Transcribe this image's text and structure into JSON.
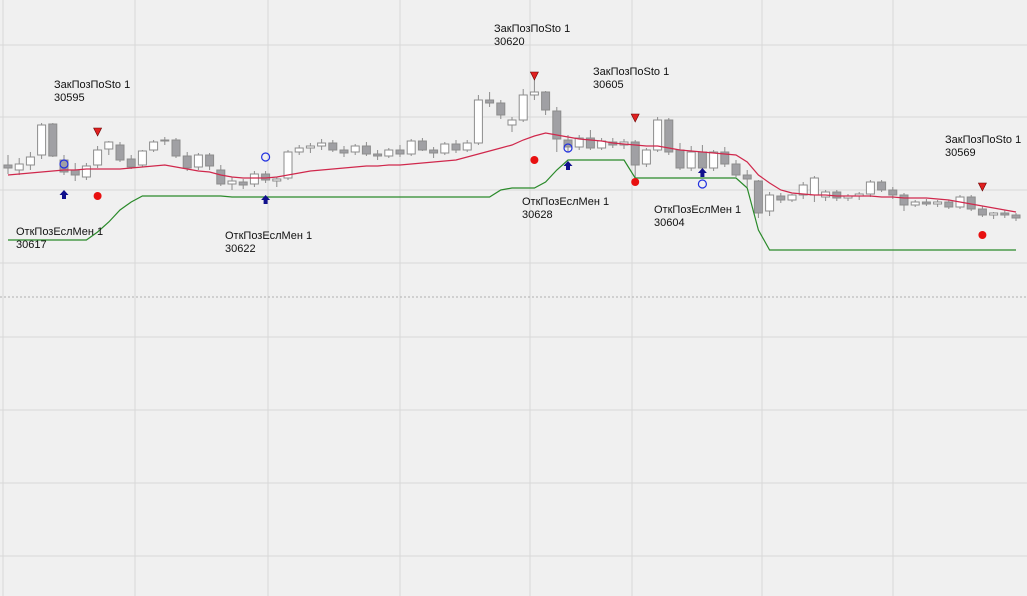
{
  "chart_data": {
    "type": "candlestick",
    "ylim": [
      30540.8,
      30660
    ],
    "up_color": "#ffffff",
    "down_color": "#a0a0a4",
    "wick_color": "#8c8c8c",
    "candles": [
      [
        30627.0,
        30629.0,
        30625.2,
        30626.4
      ],
      [
        30626.0,
        30628.4,
        30625.0,
        30627.2
      ],
      [
        30627.0,
        30629.6,
        30626.0,
        30628.6
      ],
      [
        30629.0,
        30635.4,
        30628.2,
        30635.0
      ],
      [
        30635.2,
        30635.4,
        30628.6,
        30628.8
      ],
      [
        30628.0,
        30629.0,
        30625.0,
        30625.6
      ],
      [
        30626.0,
        30627.4,
        30623.8,
        30625.0
      ],
      [
        30624.6,
        30627.4,
        30624.0,
        30626.8
      ],
      [
        30627.0,
        30630.8,
        30626.4,
        30630.0
      ],
      [
        30630.2,
        30631.8,
        30629.0,
        30631.6
      ],
      [
        30631.0,
        30631.6,
        30627.6,
        30628.0
      ],
      [
        30628.2,
        30629.0,
        30626.2,
        30626.6
      ],
      [
        30627.0,
        30630.0,
        30626.6,
        30629.8
      ],
      [
        30630.0,
        30632.0,
        30629.6,
        30631.6
      ],
      [
        30632.0,
        30632.6,
        30631.0,
        30632.0
      ],
      [
        30632.0,
        30632.4,
        30628.4,
        30628.8
      ],
      [
        30628.8,
        30629.6,
        30625.8,
        30626.4
      ],
      [
        30626.6,
        30629.4,
        30626.0,
        30629.0
      ],
      [
        30629.0,
        30629.4,
        30626.0,
        30626.8
      ],
      [
        30626.0,
        30627.0,
        30622.8,
        30623.2
      ],
      [
        30623.2,
        30624.6,
        30622.0,
        30623.8
      ],
      [
        30623.6,
        30624.2,
        30622.2,
        30623.0
      ],
      [
        30623.2,
        30625.8,
        30622.6,
        30625.2
      ],
      [
        30625.2,
        30625.8,
        30623.4,
        30624.0
      ],
      [
        30623.8,
        30624.6,
        30622.6,
        30624.2
      ],
      [
        30624.4,
        30630.0,
        30624.0,
        30629.6
      ],
      [
        30629.6,
        30631.0,
        30629.0,
        30630.4
      ],
      [
        30630.4,
        30631.4,
        30629.4,
        30630.8
      ],
      [
        30630.8,
        30632.2,
        30630.0,
        30631.4
      ],
      [
        30631.4,
        30632.0,
        30629.6,
        30630.0
      ],
      [
        30630.0,
        30630.8,
        30628.6,
        30629.4
      ],
      [
        30629.6,
        30631.2,
        30629.0,
        30630.8
      ],
      [
        30630.8,
        30631.6,
        30628.8,
        30629.2
      ],
      [
        30629.2,
        30630.0,
        30628.0,
        30628.8
      ],
      [
        30628.8,
        30630.4,
        30628.4,
        30630.0
      ],
      [
        30630.0,
        30631.0,
        30628.6,
        30629.2
      ],
      [
        30629.2,
        30632.2,
        30628.8,
        30631.8
      ],
      [
        30631.8,
        30632.4,
        30629.8,
        30630.0
      ],
      [
        30630.0,
        30630.6,
        30628.4,
        30629.4
      ],
      [
        30629.4,
        30631.6,
        30629.0,
        30631.2
      ],
      [
        30631.2,
        30632.0,
        30629.4,
        30630.0
      ],
      [
        30630.0,
        30632.0,
        30629.6,
        30631.4
      ],
      [
        30631.4,
        30641.0,
        30631.0,
        30640.0
      ],
      [
        30640.0,
        30641.6,
        30638.6,
        30639.4
      ],
      [
        30639.4,
        30640.0,
        30636.2,
        30637.0
      ],
      [
        30635.0,
        30636.6,
        30633.6,
        30636.0
      ],
      [
        30636.0,
        30642.2,
        30635.6,
        30641.0
      ],
      [
        30641.0,
        30645.0,
        30640.0,
        30641.6
      ],
      [
        30641.6,
        30641.8,
        30637.0,
        30638.0
      ],
      [
        30637.8,
        30638.6,
        30629.6,
        30632.2
      ],
      [
        30632.0,
        30633.0,
        30629.6,
        30630.6
      ],
      [
        30630.6,
        30633.0,
        30630.0,
        30632.4
      ],
      [
        30632.4,
        30634.0,
        30630.0,
        30630.4
      ],
      [
        30630.4,
        30632.4,
        30630.0,
        30631.8
      ],
      [
        30631.6,
        30632.4,
        30630.4,
        30631.0
      ],
      [
        30631.0,
        30632.2,
        30630.2,
        30631.6
      ],
      [
        30631.6,
        30632.0,
        30624.4,
        30627.0
      ],
      [
        30627.2,
        30630.4,
        30626.6,
        30630.0
      ],
      [
        30630.0,
        30636.6,
        30629.6,
        30636.0
      ],
      [
        30636.0,
        30636.4,
        30629.0,
        30629.6
      ],
      [
        30630.0,
        30631.4,
        30626.0,
        30626.4
      ],
      [
        30626.4,
        30630.8,
        30625.8,
        30629.6
      ],
      [
        30629.6,
        30631.0,
        30626.0,
        30626.4
      ],
      [
        30626.4,
        30630.0,
        30625.8,
        30629.6
      ],
      [
        30629.6,
        30630.6,
        30626.6,
        30627.2
      ],
      [
        30627.2,
        30628.0,
        30624.6,
        30625.0
      ],
      [
        30625.0,
        30626.0,
        30622.6,
        30624.2
      ],
      [
        30623.8,
        30624.0,
        30616.4,
        30617.4
      ],
      [
        30617.8,
        30621.6,
        30616.8,
        30621.0
      ],
      [
        30620.8,
        30621.4,
        30619.4,
        30620.0
      ],
      [
        30620.0,
        30621.2,
        30619.6,
        30621.0
      ],
      [
        30621.0,
        30623.6,
        30620.2,
        30623.0
      ],
      [
        30621.0,
        30624.8,
        30619.6,
        30624.4
      ],
      [
        30620.6,
        30622.0,
        30619.8,
        30621.6
      ],
      [
        30621.6,
        30622.0,
        30619.8,
        30620.4
      ],
      [
        30620.4,
        30621.2,
        30619.8,
        30620.8
      ],
      [
        30620.8,
        30621.6,
        30620.0,
        30621.2
      ],
      [
        30621.2,
        30624.0,
        30620.6,
        30623.6
      ],
      [
        30623.6,
        30624.0,
        30621.6,
        30622.0
      ],
      [
        30622.0,
        30622.6,
        30620.2,
        30621.0
      ],
      [
        30621.0,
        30621.4,
        30617.8,
        30619.0
      ],
      [
        30619.0,
        30620.0,
        30618.6,
        30619.6
      ],
      [
        30619.6,
        30620.2,
        30618.8,
        30619.2
      ],
      [
        30619.2,
        30620.0,
        30618.6,
        30619.6
      ],
      [
        30619.6,
        30620.0,
        30618.2,
        30618.6
      ],
      [
        30618.6,
        30621.0,
        30618.2,
        30620.6
      ],
      [
        30620.6,
        30621.0,
        30617.8,
        30618.2
      ],
      [
        30618.2,
        30618.8,
        30616.6,
        30617.0
      ],
      [
        30617.0,
        30617.6,
        30616.2,
        30617.4
      ],
      [
        30617.4,
        30618.0,
        30616.4,
        30617.0
      ],
      [
        30617.0,
        30617.4,
        30615.8,
        30616.4
      ]
    ],
    "lines": [
      {
        "color": "#d0284c",
        "values": [
          30625,
          30625.2,
          30625.4,
          30625.6,
          30625.8,
          30626,
          30626,
          30626.2,
          30626.2,
          30626.2,
          30626.2,
          30626.4,
          30626.6,
          30626.8,
          30627,
          30626.6,
          30626.2,
          30625.8,
          30625.6,
          30625,
          30624.6,
          30624.4,
          30624.4,
          30624.4,
          30624.6,
          30625,
          30625.4,
          30625.8,
          30626,
          30626.2,
          30626.4,
          30626.6,
          30626.8,
          30626.8,
          30627,
          30627,
          30627.2,
          30627.4,
          30627.6,
          30627.8,
          30628,
          30628.6,
          30629.2,
          30629.8,
          30630.4,
          30631,
          30632,
          30632.8,
          30633.4,
          30633,
          30632.6,
          30632.2,
          30632,
          30631.8,
          30631.4,
          30631.2,
          30631,
          30630.8,
          30630.8,
          30630.4,
          30630,
          30629.8,
          30629.6,
          30629.4,
          30629.2,
          30629,
          30627.6,
          30625,
          30623.4,
          30622,
          30621.4,
          30621.2,
          30621,
          30621,
          30620.8,
          30620.8,
          30620.8,
          30620.8,
          30620.6,
          30620.6,
          30620.4,
          30620.4,
          30620.4,
          30620.2,
          30620,
          30619.6,
          30619.2,
          30618.8,
          30618.4,
          30618,
          30617.6
        ]
      },
      {
        "color": "#2a8a2a",
        "values": [
          30612,
          30612,
          30612,
          30612,
          30612,
          30612,
          30612,
          30612,
          30613.6,
          30615.6,
          30618,
          30619.6,
          30620.8,
          30620.8,
          30620.8,
          30620.8,
          30620.8,
          30620.8,
          30620.8,
          30620.8,
          30620.6,
          30620.6,
          30620.6,
          30620.6,
          30620.6,
          30620.6,
          30620.6,
          30620.6,
          30620.6,
          30620.6,
          30620.6,
          30620.6,
          30620.6,
          30620.6,
          30620.6,
          30620.6,
          30620.6,
          30620.6,
          30620.6,
          30620.6,
          30620.6,
          30620.6,
          30620.6,
          30620.6,
          30622,
          30622.4,
          30622.4,
          30622.4,
          30623.6,
          30626,
          30628,
          30628,
          30628,
          30628,
          30628,
          30628,
          30624.4,
          30624.4,
          30624.4,
          30624.4,
          30624.4,
          30624.4,
          30624.4,
          30624.4,
          30624.4,
          30624.4,
          30622.4,
          30614,
          30610,
          30610,
          30610,
          30610,
          30610,
          30610,
          30610,
          30610,
          30610,
          30610,
          30610,
          30610,
          30610,
          30610,
          30610,
          30610,
          30610,
          30610,
          30610,
          30610,
          30610,
          30610,
          30610
        ]
      }
    ],
    "markers": [
      {
        "shape": "triangle-down",
        "color": "#e02020",
        "values": [
          null,
          null,
          null,
          null,
          null,
          null,
          null,
          null,
          30633.6,
          null,
          null,
          null,
          null,
          null,
          null,
          null,
          null,
          null,
          null,
          null,
          null,
          null,
          null,
          null,
          null,
          null,
          null,
          null,
          null,
          null,
          null,
          null,
          null,
          null,
          null,
          null,
          null,
          null,
          null,
          null,
          null,
          null,
          null,
          null,
          null,
          null,
          null,
          30644.8,
          null,
          null,
          null,
          null,
          null,
          null,
          null,
          null,
          30636.4,
          null,
          null,
          null,
          null,
          null,
          null,
          null,
          null,
          null,
          null,
          null,
          null,
          null,
          null,
          null,
          null,
          null,
          null,
          null,
          null,
          null,
          null,
          null,
          null,
          null,
          null,
          null,
          null,
          null,
          null,
          30622.6,
          null,
          null,
          null
        ]
      },
      {
        "shape": "dot",
        "color": "#e81010",
        "values": [
          null,
          null,
          null,
          null,
          null,
          null,
          null,
          null,
          30620.8,
          null,
          null,
          null,
          null,
          null,
          null,
          null,
          null,
          null,
          null,
          null,
          null,
          null,
          null,
          null,
          null,
          null,
          null,
          null,
          null,
          null,
          null,
          null,
          null,
          null,
          null,
          null,
          null,
          null,
          null,
          null,
          null,
          null,
          null,
          null,
          null,
          null,
          null,
          30628,
          null,
          null,
          null,
          null,
          null,
          null,
          null,
          null,
          30623.6,
          null,
          null,
          null,
          null,
          null,
          null,
          null,
          null,
          null,
          null,
          null,
          null,
          null,
          null,
          null,
          null,
          null,
          null,
          null,
          null,
          null,
          null,
          null,
          null,
          null,
          null,
          null,
          null,
          null,
          null,
          30613,
          null,
          null,
          null
        ]
      },
      {
        "shape": "arrow-up",
        "color": "#10108c",
        "values": [
          null,
          null,
          null,
          null,
          null,
          30621,
          null,
          null,
          null,
          null,
          null,
          null,
          null,
          null,
          null,
          null,
          null,
          null,
          null,
          null,
          null,
          null,
          null,
          30620,
          null,
          null,
          null,
          null,
          null,
          null,
          null,
          null,
          null,
          null,
          null,
          null,
          null,
          null,
          null,
          null,
          null,
          null,
          null,
          null,
          null,
          null,
          null,
          null,
          null,
          null,
          30626.8,
          null,
          null,
          null,
          null,
          null,
          null,
          null,
          null,
          null,
          null,
          null,
          30625.4,
          null,
          null,
          null,
          null,
          null,
          null,
          null,
          null,
          null,
          null,
          null,
          null,
          null,
          null,
          null,
          null,
          null,
          null,
          null,
          null,
          null,
          null,
          null,
          null,
          null,
          null,
          null,
          null
        ]
      },
      {
        "shape": "circle",
        "color": "#2030e0",
        "values": [
          null,
          null,
          null,
          null,
          null,
          30627.2,
          null,
          null,
          null,
          null,
          null,
          null,
          null,
          null,
          null,
          null,
          null,
          null,
          null,
          null,
          null,
          null,
          null,
          30628.6,
          null,
          null,
          null,
          null,
          null,
          null,
          null,
          null,
          null,
          null,
          null,
          null,
          null,
          null,
          null,
          null,
          null,
          null,
          null,
          null,
          null,
          null,
          null,
          null,
          null,
          null,
          30630.4,
          null,
          null,
          null,
          null,
          null,
          null,
          null,
          null,
          null,
          null,
          null,
          30623.2,
          null,
          null,
          null,
          null,
          null,
          null,
          null,
          null,
          null,
          null,
          null,
          null,
          null,
          null,
          null,
          null,
          null,
          null,
          null,
          null,
          null,
          null,
          null,
          null,
          null,
          null,
          null,
          null
        ]
      }
    ],
    "annotations": [
      {
        "text": "ЗакПозПоSto 1",
        "value": 30595
      },
      {
        "text": "ЗакПозПоSto 1",
        "value": 30620
      },
      {
        "text": "ЗакПозПоSto 1",
        "value": 30605
      },
      {
        "text": "ЗакПозПоSto 1",
        "value": 30569
      },
      {
        "text": "ОткПозЕслМен 1",
        "value": 30617
      },
      {
        "text": "ОткПозЕслМен 1",
        "value": 30622
      },
      {
        "text": "ОткПозЕслМен 1",
        "value": 30628
      },
      {
        "text": "ОткПозЕслМен 1",
        "value": 30604
      }
    ]
  }
}
